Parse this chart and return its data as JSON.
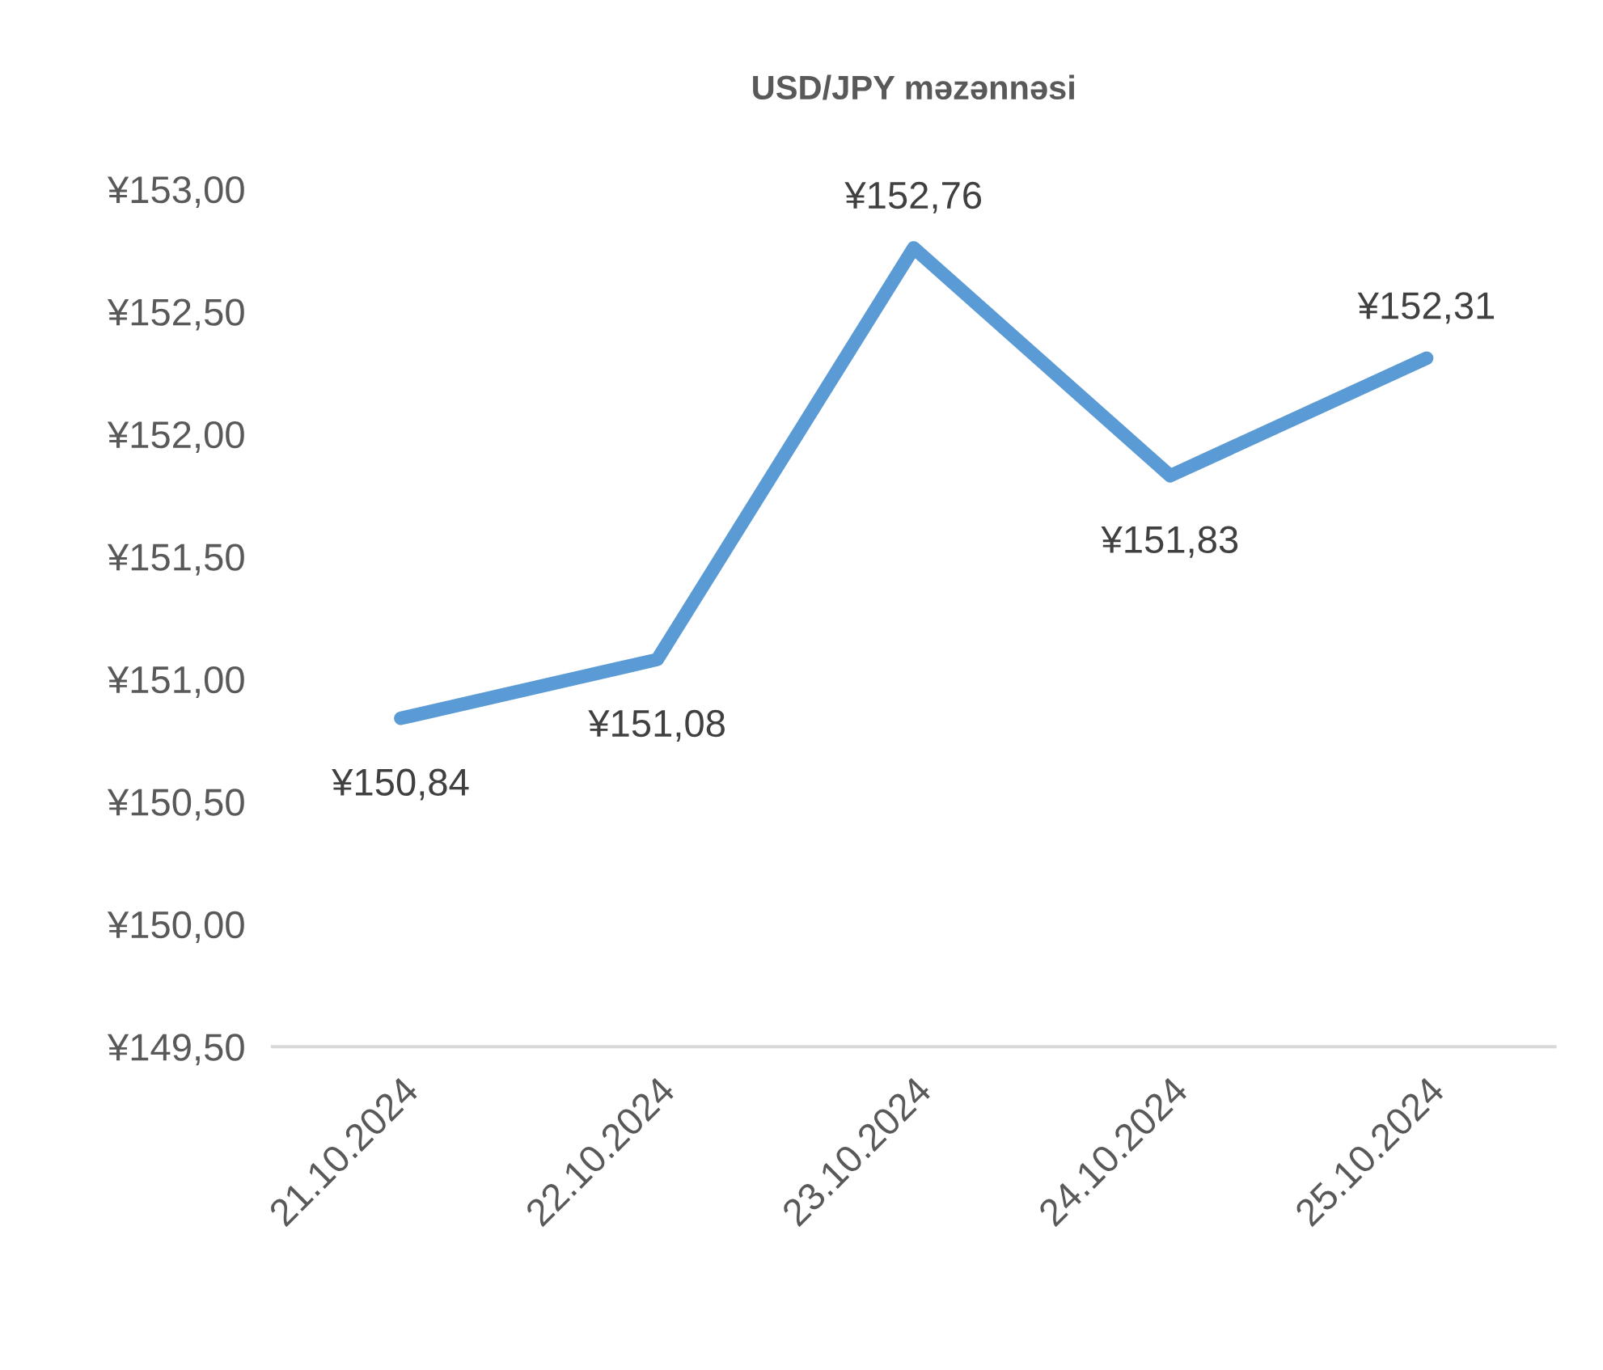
{
  "chart_data": {
    "type": "line",
    "title": "USD/JPY məzənnəsi",
    "categories": [
      "21.10.2024",
      "22.10.2024",
      "23.10.2024",
      "24.10.2024",
      "25.10.2024"
    ],
    "series": [
      {
        "color": "#5b9bd5",
        "values": [
          150.84,
          151.08,
          152.76,
          151.83,
          152.31
        ],
        "value_labels": [
          "¥150,84",
          "¥151,08",
          "¥152,76",
          "¥151,83",
          "¥152,31"
        ]
      }
    ],
    "ylim": [
      149.5,
      153
    ],
    "yticks": [
      {
        "value": 149.5,
        "label": "¥149,50"
      },
      {
        "value": 150,
        "label": "¥150,00"
      },
      {
        "value": 150.5,
        "label": "¥150,50"
      },
      {
        "value": 151,
        "label": "¥151,00"
      },
      {
        "value": 151.5,
        "label": "¥151,50"
      },
      {
        "value": 152,
        "label": "¥152,00"
      },
      {
        "value": 152.5,
        "label": "¥152,50"
      },
      {
        "value": 153,
        "label": "¥153,00"
      }
    ],
    "grid": false,
    "legend": false,
    "marker": "none",
    "line_style": "solid"
  }
}
